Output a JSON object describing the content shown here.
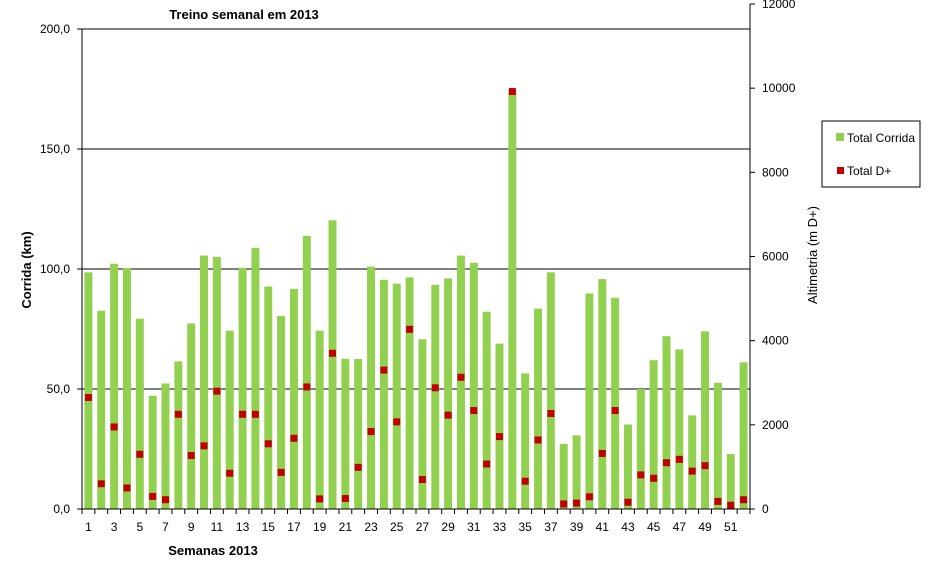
{
  "chart_data": {
    "type": "bar",
    "title": "Treino semanal em 2013",
    "xlabel": "Semanas 2013",
    "ylabel": "Corrida (km)",
    "y2label": "Altimetria (m D+)",
    "ylim": [
      0,
      200
    ],
    "y2lim": [
      0,
      12000
    ],
    "y_ticks": [
      "0,0",
      "50,0",
      "100,0",
      "150,0",
      "200,0"
    ],
    "y_tick_values": [
      0,
      50,
      100,
      150,
      200
    ],
    "y2_ticks": [
      "0",
      "2000",
      "4000",
      "6000",
      "8000",
      "10000",
      "12000"
    ],
    "y2_tick_values": [
      0,
      2000,
      4000,
      6000,
      8000,
      10000,
      12000
    ],
    "x_tick_labels": [
      "1",
      "3",
      "5",
      "7",
      "9",
      "11",
      "13",
      "15",
      "17",
      "19",
      "21",
      "23",
      "25",
      "27",
      "29",
      "31",
      "33",
      "35",
      "37",
      "39",
      "41",
      "43",
      "45",
      "47",
      "49",
      "51"
    ],
    "categories": [
      "1",
      "2",
      "3",
      "4",
      "5",
      "6",
      "7",
      "8",
      "9",
      "10",
      "11",
      "12",
      "13",
      "14",
      "15",
      "16",
      "17",
      "18",
      "19",
      "20",
      "21",
      "22",
      "23",
      "24",
      "25",
      "26",
      "27",
      "28",
      "29",
      "30",
      "31",
      "32",
      "33",
      "34",
      "35",
      "36",
      "37",
      "38",
      "39",
      "40",
      "41",
      "42",
      "43",
      "44",
      "45",
      "46",
      "47",
      "48",
      "49",
      "50",
      "51",
      "52"
    ],
    "legend_position": "right",
    "series": [
      {
        "name": "Total Corrida",
        "kind": "bar",
        "axis": "left",
        "color": "#92d050",
        "values": [
          98.6,
          82.6,
          102.2,
          100.4,
          79.3,
          47.2,
          52.3,
          61.5,
          77.3,
          105.6,
          105.1,
          74.3,
          100.5,
          108.8,
          92.7,
          80.4,
          91.7,
          113.8,
          74.3,
          120.3,
          62.6,
          62.5,
          101.0,
          95.5,
          93.9,
          96.5,
          70.7,
          93.4,
          96.1,
          105.6,
          102.6,
          82.2,
          68.9,
          174.6,
          56.5,
          83.5,
          98.6,
          27.1,
          30.7,
          89.8,
          95.8,
          88.0,
          35.2,
          50.0,
          62.0,
          72.0,
          66.5,
          39.0,
          74.0,
          52.6,
          22.9,
          61.1
        ]
      },
      {
        "name": "Total D+",
        "kind": "marker",
        "axis": "right",
        "color": "#c00000",
        "values": [
          2650,
          600,
          1950,
          500,
          1300,
          300,
          220,
          2250,
          1270,
          1500,
          2800,
          850,
          2250,
          2250,
          1550,
          870,
          1680,
          2900,
          240,
          3700,
          250,
          990,
          1840,
          3300,
          2070,
          4270,
          700,
          2880,
          2230,
          3130,
          2340,
          1070,
          1720,
          9920,
          660,
          1640,
          2270,
          120,
          140,
          290,
          1320,
          2340,
          160,
          810,
          730,
          1100,
          1180,
          900,
          1030,
          180,
          90,
          220
        ]
      }
    ]
  }
}
